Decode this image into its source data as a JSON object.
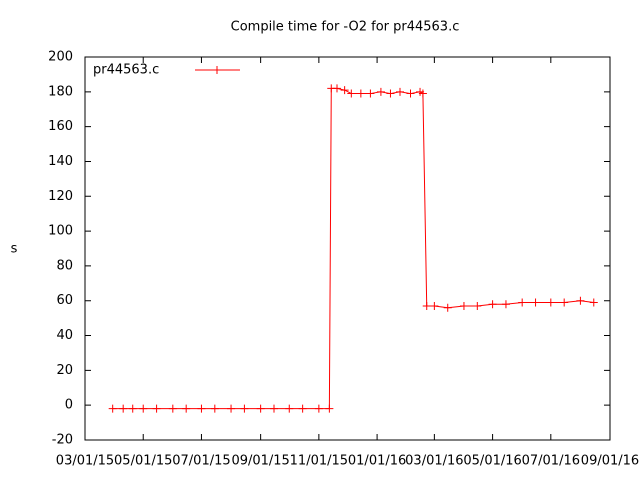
{
  "chart_data": {
    "type": "line",
    "title": "Compile time for -O2 for pr44563.c",
    "y_label": "s",
    "legend": "top-left",
    "x": [
      "2015-03-30",
      "2015-04-10",
      "2015-04-20",
      "2015-05-01",
      "2015-05-15",
      "2015-06-01",
      "2015-06-15",
      "2015-07-01",
      "2015-07-15",
      "2015-08-01",
      "2015-08-15",
      "2015-09-01",
      "2015-09-15",
      "2015-10-01",
      "2015-10-15",
      "2015-11-01",
      "2015-11-12",
      "2015-11-14",
      "2015-11-20",
      "2015-11-28",
      "2015-12-05",
      "2015-12-15",
      "2015-12-25",
      "2016-01-05",
      "2016-01-15",
      "2016-01-25",
      "2016-02-05",
      "2016-02-15",
      "2016-02-18",
      "2016-02-22",
      "2016-03-01",
      "2016-03-15",
      "2016-04-01",
      "2016-04-15",
      "2016-05-01",
      "2016-05-15",
      "2016-06-01",
      "2016-06-15",
      "2016-07-01",
      "2016-07-15",
      "2016-08-01",
      "2016-08-15"
    ],
    "series": [
      {
        "name": "pr44563.c",
        "color": "#ff0000",
        "values": [
          -2,
          -2,
          -2,
          -2,
          -2,
          -2,
          -2,
          -2,
          -2,
          -2,
          -2,
          -2,
          -2,
          -2,
          -2,
          -2,
          -2,
          182,
          182,
          181,
          179,
          179,
          179,
          180,
          179,
          180,
          179,
          180,
          179,
          57,
          57,
          56,
          57,
          57,
          58,
          58,
          59,
          59,
          59,
          59,
          60,
          59
        ]
      }
    ],
    "xlim": [
      "2015-03-01",
      "2016-09-01"
    ],
    "xticks": [
      {
        "value": "2015-03-01",
        "label": "03/01/15"
      },
      {
        "value": "2015-05-01",
        "label": "05/01/15"
      },
      {
        "value": "2015-07-01",
        "label": "07/01/15"
      },
      {
        "value": "2015-09-01",
        "label": "09/01/15"
      },
      {
        "value": "2015-11-01",
        "label": "11/01/15"
      },
      {
        "value": "2016-01-01",
        "label": "01/01/16"
      },
      {
        "value": "2016-03-01",
        "label": "03/01/16"
      },
      {
        "value": "2016-05-01",
        "label": "05/01/16"
      },
      {
        "value": "2016-07-01",
        "label": "07/01/16"
      },
      {
        "value": "2016-09-01",
        "label": "09/01/16"
      }
    ],
    "ylim": [
      -20,
      200
    ],
    "yticks": [
      -20,
      0,
      20,
      40,
      60,
      80,
      100,
      120,
      140,
      160,
      180,
      200
    ],
    "grid": false
  }
}
